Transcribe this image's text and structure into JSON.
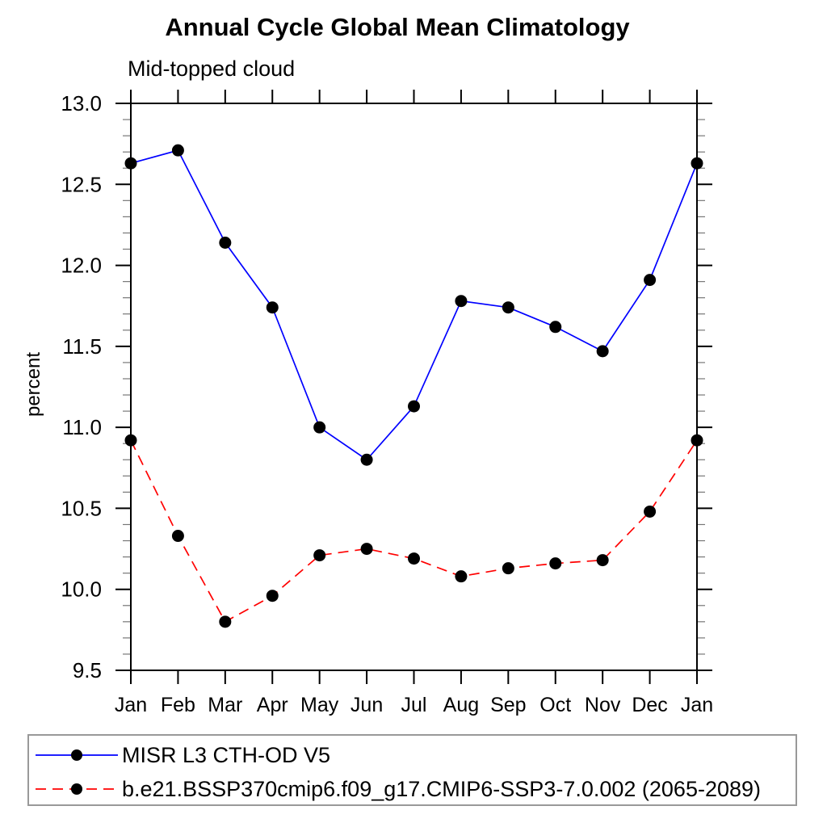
{
  "colors": {
    "background": "#ffffff",
    "axis": "#000000",
    "minor_tick": "#777777",
    "marker": "#000000",
    "legend_border": "#999999",
    "series_blue": "#0000ff",
    "series_red": "#ff0000"
  },
  "chart_data": {
    "type": "line",
    "title": "Annual Cycle Global Mean Climatology",
    "subtitle": "Mid-topped cloud",
    "xlabel": "",
    "ylabel": "percent",
    "categories": [
      "Jan",
      "Feb",
      "Mar",
      "Apr",
      "May",
      "Jun",
      "Jul",
      "Aug",
      "Sep",
      "Oct",
      "Nov",
      "Dec",
      "Jan"
    ],
    "ylim": [
      9.5,
      13.0
    ],
    "ytick_major": [
      13.0,
      12.5,
      12.0,
      11.5,
      11.0,
      10.5,
      10.0,
      9.5
    ],
    "ytick_labels": [
      "13.0",
      "12.5",
      "12.0",
      "11.5",
      "11.0",
      "10.5",
      "10.0",
      "9.5"
    ],
    "ytick_minor_step": 0.1,
    "grid": false,
    "legend_position": "bottom",
    "series": [
      {
        "name": "MISR L3 CTH-OD V5",
        "color": "#0000ff",
        "style": "solid",
        "marker": "circle",
        "marker_color": "#000000",
        "values": [
          12.63,
          12.71,
          12.14,
          11.74,
          11.0,
          10.8,
          11.13,
          11.78,
          11.74,
          11.62,
          11.47,
          11.91,
          12.63
        ]
      },
      {
        "name": "b.e21.BSSP370cmip6.f09_g17.CMIP6-SSP3-7.0.002 (2065-2089)",
        "color": "#ff0000",
        "style": "dashed",
        "marker": "circle",
        "marker_color": "#000000",
        "values": [
          10.92,
          10.33,
          9.8,
          9.96,
          10.21,
          10.25,
          10.19,
          10.08,
          10.13,
          10.16,
          10.18,
          10.48,
          10.92
        ]
      }
    ]
  }
}
